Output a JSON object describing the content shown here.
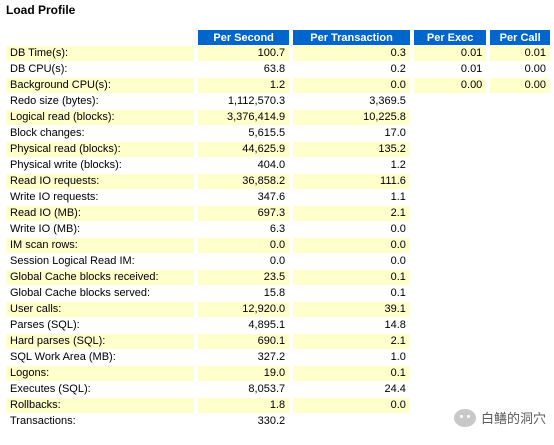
{
  "title": "Load Profile",
  "columns": [
    "Per Second",
    "Per Transaction",
    "Per Exec",
    "Per Call"
  ],
  "rows": [
    {
      "label": "DB Time(s):",
      "v1": "100.7",
      "v2": "0.3",
      "v3": "0.01",
      "v4": "0.01"
    },
    {
      "label": "DB CPU(s):",
      "v1": "63.8",
      "v2": "0.2",
      "v3": "0.01",
      "v4": "0.00"
    },
    {
      "label": "Background CPU(s):",
      "v1": "1.2",
      "v2": "0.0",
      "v3": "0.00",
      "v4": "0.00"
    },
    {
      "label": "Redo size (bytes):",
      "v1": "1,112,570.3",
      "v2": "3,369.5",
      "v3": "",
      "v4": ""
    },
    {
      "label": "Logical read (blocks):",
      "v1": "3,376,414.9",
      "v2": "10,225.8",
      "v3": "",
      "v4": ""
    },
    {
      "label": "Block changes:",
      "v1": "5,615.5",
      "v2": "17.0",
      "v3": "",
      "v4": ""
    },
    {
      "label": "Physical read (blocks):",
      "v1": "44,625.9",
      "v2": "135.2",
      "v3": "",
      "v4": ""
    },
    {
      "label": "Physical write (blocks):",
      "v1": "404.0",
      "v2": "1.2",
      "v3": "",
      "v4": ""
    },
    {
      "label": "Read IO requests:",
      "v1": "36,858.2",
      "v2": "111.6",
      "v3": "",
      "v4": ""
    },
    {
      "label": "Write IO requests:",
      "v1": "347.6",
      "v2": "1.1",
      "v3": "",
      "v4": ""
    },
    {
      "label": "Read IO (MB):",
      "v1": "697.3",
      "v2": "2.1",
      "v3": "",
      "v4": ""
    },
    {
      "label": "Write IO (MB):",
      "v1": "6.3",
      "v2": "0.0",
      "v3": "",
      "v4": ""
    },
    {
      "label": "IM scan rows:",
      "v1": "0.0",
      "v2": "0.0",
      "v3": "",
      "v4": ""
    },
    {
      "label": "Session Logical Read IM:",
      "v1": "0.0",
      "v2": "0.0",
      "v3": "",
      "v4": ""
    },
    {
      "label": "Global Cache blocks received:",
      "v1": "23.5",
      "v2": "0.1",
      "v3": "",
      "v4": ""
    },
    {
      "label": "Global Cache blocks served:",
      "v1": "15.8",
      "v2": "0.1",
      "v3": "",
      "v4": ""
    },
    {
      "label": "User calls:",
      "v1": "12,920.0",
      "v2": "39.1",
      "v3": "",
      "v4": ""
    },
    {
      "label": "Parses (SQL):",
      "v1": "4,895.1",
      "v2": "14.8",
      "v3": "",
      "v4": ""
    },
    {
      "label": "Hard parses (SQL):",
      "v1": "690.1",
      "v2": "2.1",
      "v3": "",
      "v4": ""
    },
    {
      "label": "SQL Work Area (MB):",
      "v1": "327.2",
      "v2": "1.0",
      "v3": "",
      "v4": ""
    },
    {
      "label": "Logons:",
      "v1": "19.0",
      "v2": "0.1",
      "v3": "",
      "v4": ""
    },
    {
      "label": "Executes (SQL):",
      "v1": "8,053.7",
      "v2": "24.4",
      "v3": "",
      "v4": ""
    },
    {
      "label": "Rollbacks:",
      "v1": "1.8",
      "v2": "0.0",
      "v3": "",
      "v4": ""
    },
    {
      "label": "Transactions:",
      "v1": "330.2",
      "v2": "",
      "v3": "",
      "v4": ""
    }
  ],
  "watermark": {
    "text": "白鳝的洞穴",
    "icon": "wechat-icon"
  },
  "colors": {
    "header_bg": "#0066cc",
    "odd_row_bg": "#ffffcc",
    "even_row_bg": "#ffffff"
  }
}
